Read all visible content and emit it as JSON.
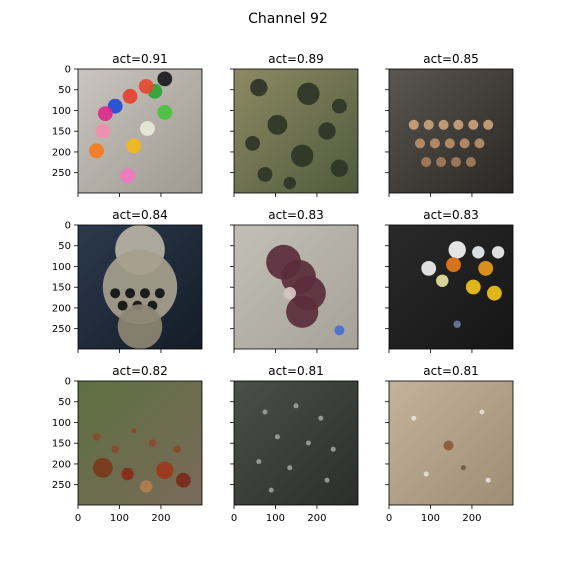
{
  "figure": {
    "title": "Channel 92"
  },
  "chart_data": {
    "type": "image_grid",
    "rows": 3,
    "cols": 3,
    "axis_range": [
      0,
      299
    ],
    "yticks": [
      0,
      50,
      100,
      150,
      200,
      250
    ],
    "xticks": [
      0,
      100,
      200
    ],
    "y_labels_shown_on_col": 0,
    "x_labels_shown_on_row": 2,
    "panels": [
      {
        "title": "act=0.91",
        "subject": "colorful push pins on gravel",
        "palette": {
          "bg1": "#c9c5be",
          "bg2": "#9e9a92"
        },
        "items": [
          {
            "u": 0.7,
            "v": 0.08,
            "r": 0.06,
            "c": "#1a1a1a"
          },
          {
            "u": 0.62,
            "v": 0.18,
            "r": 0.06,
            "c": "#2fa336"
          },
          {
            "u": 0.55,
            "v": 0.14,
            "r": 0.06,
            "c": "#e64a2e"
          },
          {
            "u": 0.42,
            "v": 0.22,
            "r": 0.06,
            "c": "#e6402d"
          },
          {
            "u": 0.3,
            "v": 0.3,
            "r": 0.06,
            "c": "#2349d6"
          },
          {
            "u": 0.22,
            "v": 0.36,
            "r": 0.06,
            "c": "#d92b8a"
          },
          {
            "u": 0.7,
            "v": 0.35,
            "r": 0.06,
            "c": "#49c33d"
          },
          {
            "u": 0.56,
            "v": 0.48,
            "r": 0.06,
            "c": "#e8e9d9"
          },
          {
            "u": 0.2,
            "v": 0.5,
            "r": 0.06,
            "c": "#f08fae"
          },
          {
            "u": 0.45,
            "v": 0.62,
            "r": 0.06,
            "c": "#f3b71b"
          },
          {
            "u": 0.15,
            "v": 0.66,
            "r": 0.06,
            "c": "#f47a1f"
          },
          {
            "u": 0.4,
            "v": 0.86,
            "r": 0.06,
            "c": "#f178c0"
          }
        ]
      },
      {
        "title": "act=0.89",
        "subject": "water droplets on surface",
        "palette": {
          "bg1": "#8d8a63",
          "bg2": "#4f5a3c"
        },
        "items": [
          {
            "u": 0.2,
            "v": 0.15,
            "r": 0.07,
            "c": "#2e3526"
          },
          {
            "u": 0.6,
            "v": 0.2,
            "r": 0.09,
            "c": "#2e3526"
          },
          {
            "u": 0.85,
            "v": 0.3,
            "r": 0.06,
            "c": "#2e3526"
          },
          {
            "u": 0.35,
            "v": 0.45,
            "r": 0.08,
            "c": "#2e3526"
          },
          {
            "u": 0.75,
            "v": 0.5,
            "r": 0.07,
            "c": "#2e3526"
          },
          {
            "u": 0.15,
            "v": 0.6,
            "r": 0.06,
            "c": "#2e3526"
          },
          {
            "u": 0.55,
            "v": 0.7,
            "r": 0.09,
            "c": "#2e3526"
          },
          {
            "u": 0.25,
            "v": 0.85,
            "r": 0.06,
            "c": "#2e3526"
          },
          {
            "u": 0.85,
            "v": 0.8,
            "r": 0.07,
            "c": "#2e3526"
          },
          {
            "u": 0.45,
            "v": 0.92,
            "r": 0.05,
            "c": "#2e3526"
          }
        ]
      },
      {
        "title": "act=0.85",
        "subject": "old typewriter keys",
        "palette": {
          "bg1": "#5a5651",
          "bg2": "#2a2724"
        },
        "items": [
          {
            "u": 0.2,
            "v": 0.45,
            "r": 0.04,
            "c": "#c9a27a"
          },
          {
            "u": 0.32,
            "v": 0.45,
            "r": 0.04,
            "c": "#c9a27a"
          },
          {
            "u": 0.44,
            "v": 0.45,
            "r": 0.04,
            "c": "#c9a27a"
          },
          {
            "u": 0.56,
            "v": 0.45,
            "r": 0.04,
            "c": "#c9a27a"
          },
          {
            "u": 0.68,
            "v": 0.45,
            "r": 0.04,
            "c": "#c9a27a"
          },
          {
            "u": 0.8,
            "v": 0.45,
            "r": 0.04,
            "c": "#c9a27a"
          },
          {
            "u": 0.25,
            "v": 0.6,
            "r": 0.04,
            "c": "#b88e68"
          },
          {
            "u": 0.37,
            "v": 0.6,
            "r": 0.04,
            "c": "#b88e68"
          },
          {
            "u": 0.49,
            "v": 0.6,
            "r": 0.04,
            "c": "#b88e68"
          },
          {
            "u": 0.61,
            "v": 0.6,
            "r": 0.04,
            "c": "#b88e68"
          },
          {
            "u": 0.73,
            "v": 0.6,
            "r": 0.04,
            "c": "#b88e68"
          },
          {
            "u": 0.3,
            "v": 0.75,
            "r": 0.04,
            "c": "#a57c5c"
          },
          {
            "u": 0.42,
            "v": 0.75,
            "r": 0.04,
            "c": "#a57c5c"
          },
          {
            "u": 0.54,
            "v": 0.75,
            "r": 0.04,
            "c": "#a57c5c"
          },
          {
            "u": 0.66,
            "v": 0.75,
            "r": 0.04,
            "c": "#a57c5c"
          }
        ]
      },
      {
        "title": "act=0.84",
        "subject": "vintage typewriter",
        "palette": {
          "bg1": "#2c3a4e",
          "bg2": "#141c27"
        },
        "items": [
          {
            "u": 0.5,
            "v": 0.2,
            "r": 0.2,
            "c": "#b9b3a4"
          },
          {
            "u": 0.5,
            "v": 0.5,
            "r": 0.3,
            "c": "#a7a08e"
          },
          {
            "u": 0.3,
            "v": 0.55,
            "r": 0.04,
            "c": "#111111"
          },
          {
            "u": 0.42,
            "v": 0.55,
            "r": 0.04,
            "c": "#111111"
          },
          {
            "u": 0.54,
            "v": 0.55,
            "r": 0.04,
            "c": "#111111"
          },
          {
            "u": 0.66,
            "v": 0.55,
            "r": 0.04,
            "c": "#111111"
          },
          {
            "u": 0.36,
            "v": 0.65,
            "r": 0.04,
            "c": "#111111"
          },
          {
            "u": 0.48,
            "v": 0.65,
            "r": 0.04,
            "c": "#111111"
          },
          {
            "u": 0.6,
            "v": 0.65,
            "r": 0.04,
            "c": "#111111"
          },
          {
            "u": 0.5,
            "v": 0.82,
            "r": 0.18,
            "c": "#8d8674"
          }
        ]
      },
      {
        "title": "act=0.83",
        "subject": "flatworm on sand",
        "palette": {
          "bg1": "#c2bfb7",
          "bg2": "#a6a29a"
        },
        "items": [
          {
            "u": 0.4,
            "v": 0.3,
            "r": 0.14,
            "c": "#5b2d3c"
          },
          {
            "u": 0.52,
            "v": 0.42,
            "r": 0.14,
            "c": "#5b2d3c"
          },
          {
            "u": 0.6,
            "v": 0.55,
            "r": 0.14,
            "c": "#5b2d3c"
          },
          {
            "u": 0.55,
            "v": 0.7,
            "r": 0.13,
            "c": "#5b2d3c"
          },
          {
            "u": 0.45,
            "v": 0.55,
            "r": 0.05,
            "c": "#d7c6c2"
          },
          {
            "u": 0.85,
            "v": 0.85,
            "r": 0.04,
            "c": "#4a6fd0"
          }
        ]
      },
      {
        "title": "act=0.83",
        "subject": "pill bottles on dark surface",
        "palette": {
          "bg1": "#2a2a2a",
          "bg2": "#151515"
        },
        "items": [
          {
            "u": 0.55,
            "v": 0.2,
            "r": 0.07,
            "c": "#f5f5f5"
          },
          {
            "u": 0.72,
            "v": 0.22,
            "r": 0.05,
            "c": "#e9eef2"
          },
          {
            "u": 0.88,
            "v": 0.22,
            "r": 0.05,
            "c": "#f0f0f0"
          },
          {
            "u": 0.52,
            "v": 0.32,
            "r": 0.06,
            "c": "#e87a1a"
          },
          {
            "u": 0.78,
            "v": 0.35,
            "r": 0.06,
            "c": "#e89a1a"
          },
          {
            "u": 0.32,
            "v": 0.35,
            "r": 0.06,
            "c": "#f0f0f0"
          },
          {
            "u": 0.43,
            "v": 0.45,
            "r": 0.05,
            "c": "#e9e4a0"
          },
          {
            "u": 0.68,
            "v": 0.5,
            "r": 0.06,
            "c": "#f0c419"
          },
          {
            "u": 0.85,
            "v": 0.55,
            "r": 0.06,
            "c": "#f0c419"
          },
          {
            "u": 0.55,
            "v": 0.8,
            "r": 0.03,
            "c": "#6a7a9a"
          }
        ]
      },
      {
        "title": "act=0.82",
        "subject": "chestnuts on ground in forest",
        "palette": {
          "bg1": "#5d7040",
          "bg2": "#7a6a5a"
        },
        "items": [
          {
            "u": 0.2,
            "v": 0.7,
            "r": 0.08,
            "c": "#7a3a1a"
          },
          {
            "u": 0.4,
            "v": 0.75,
            "r": 0.05,
            "c": "#8a2a1a"
          },
          {
            "u": 0.7,
            "v": 0.72,
            "r": 0.07,
            "c": "#9a3a1a"
          },
          {
            "u": 0.85,
            "v": 0.8,
            "r": 0.06,
            "c": "#7a2a1a"
          },
          {
            "u": 0.55,
            "v": 0.85,
            "r": 0.05,
            "c": "#b08050"
          },
          {
            "u": 0.3,
            "v": 0.55,
            "r": 0.03,
            "c": "#8a4a2a"
          },
          {
            "u": 0.6,
            "v": 0.5,
            "r": 0.03,
            "c": "#8a4a2a"
          },
          {
            "u": 0.8,
            "v": 0.55,
            "r": 0.03,
            "c": "#8a4a2a"
          },
          {
            "u": 0.15,
            "v": 0.45,
            "r": 0.03,
            "c": "#8a4a2a"
          },
          {
            "u": 0.45,
            "v": 0.4,
            "r": 0.02,
            "c": "#8a4a2a"
          }
        ]
      },
      {
        "title": "act=0.81",
        "subject": "droplets on dark glass",
        "palette": {
          "bg1": "#4b4f4a",
          "bg2": "#2b2e2a"
        },
        "items": [
          {
            "u": 0.25,
            "v": 0.25,
            "r": 0.02,
            "c": "#9aa09a"
          },
          {
            "u": 0.5,
            "v": 0.2,
            "r": 0.02,
            "c": "#9aa09a"
          },
          {
            "u": 0.7,
            "v": 0.3,
            "r": 0.02,
            "c": "#9aa09a"
          },
          {
            "u": 0.35,
            "v": 0.45,
            "r": 0.02,
            "c": "#9aa09a"
          },
          {
            "u": 0.6,
            "v": 0.5,
            "r": 0.02,
            "c": "#9aa09a"
          },
          {
            "u": 0.8,
            "v": 0.55,
            "r": 0.02,
            "c": "#9aa09a"
          },
          {
            "u": 0.2,
            "v": 0.65,
            "r": 0.02,
            "c": "#9aa09a"
          },
          {
            "u": 0.45,
            "v": 0.7,
            "r": 0.02,
            "c": "#9aa09a"
          },
          {
            "u": 0.75,
            "v": 0.8,
            "r": 0.02,
            "c": "#9aa09a"
          },
          {
            "u": 0.3,
            "v": 0.88,
            "r": 0.02,
            "c": "#9aa09a"
          }
        ]
      },
      {
        "title": "act=0.81",
        "subject": "sandy ground with small pebble",
        "palette": {
          "bg1": "#c4b39a",
          "bg2": "#9e8c74"
        },
        "items": [
          {
            "u": 0.48,
            "v": 0.52,
            "r": 0.04,
            "c": "#8a5a3a"
          },
          {
            "u": 0.2,
            "v": 0.3,
            "r": 0.02,
            "c": "#e8e0d6"
          },
          {
            "u": 0.75,
            "v": 0.25,
            "r": 0.02,
            "c": "#e8e0d6"
          },
          {
            "u": 0.3,
            "v": 0.75,
            "r": 0.02,
            "c": "#e8e0d6"
          },
          {
            "u": 0.8,
            "v": 0.8,
            "r": 0.02,
            "c": "#e8e0d6"
          },
          {
            "u": 0.6,
            "v": 0.7,
            "r": 0.02,
            "c": "#6a5a4a"
          }
        ]
      }
    ]
  }
}
